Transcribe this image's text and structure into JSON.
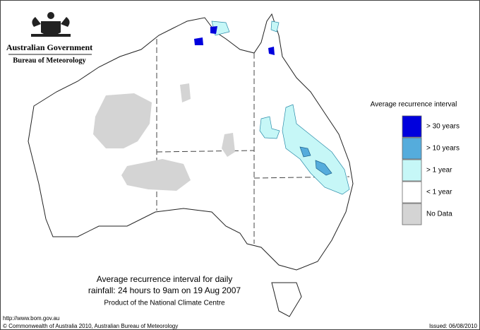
{
  "header": {
    "title": "Australian Government",
    "subtitle": "Bureau of Meteorology"
  },
  "legend": {
    "title": "Average recurrence interval",
    "items": [
      {
        "label": "> 30 years",
        "color": "#0000dd"
      },
      {
        "label": "> 10 years",
        "color": "#55acdc"
      },
      {
        "label": "> 1 year",
        "color": "#c6f7f7"
      },
      {
        "label": "< 1 year",
        "color": "#ffffff"
      },
      {
        "label": "No Data",
        "color": "#d4d4d4"
      }
    ]
  },
  "caption": {
    "line1": "Average recurrence interval for daily",
    "line2": "rainfall: 24 hours to 9am on 19 Aug 2007",
    "line3": "Product of the National Climate Centre"
  },
  "footer": {
    "url": "http://www.bom.gov.au",
    "copyright": "© Commonwealth of Australia 2010, Australian Bureau of Meteorology",
    "issued": "Issued: 06/08/2010"
  }
}
